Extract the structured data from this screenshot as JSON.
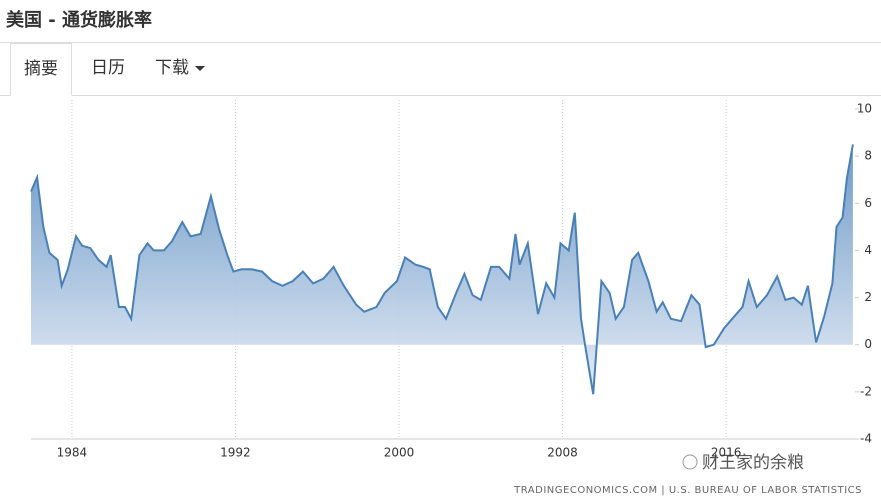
{
  "page": {
    "title": "美国 - 通货膨胀率",
    "tabs": [
      "摘要",
      "日历",
      "下载"
    ],
    "watermark": "财王家的余粮",
    "source": "TRADINGECONOMICS.COM | U.S. BUREAU OF LABOR STATISTICS"
  },
  "chart_data": {
    "type": "area",
    "x": [
      1982.0,
      1982.3,
      1982.6,
      1982.9,
      1983.3,
      1983.5,
      1983.8,
      1984.2,
      1984.5,
      1984.9,
      1985.3,
      1985.7,
      1985.9,
      1986.3,
      1986.6,
      1986.9,
      1987.3,
      1987.7,
      1988.0,
      1988.5,
      1988.9,
      1989.4,
      1989.8,
      1990.3,
      1990.8,
      1991.2,
      1991.6,
      1991.9,
      1992.3,
      1992.8,
      1993.3,
      1993.8,
      1994.3,
      1994.8,
      1995.3,
      1995.8,
      1996.3,
      1996.8,
      1997.3,
      1997.9,
      1998.3,
      1998.9,
      1999.3,
      1999.9,
      2000.3,
      2000.8,
      2001.2,
      2001.5,
      2001.9,
      2002.3,
      2002.8,
      2003.2,
      2003.6,
      2004.0,
      2004.5,
      2004.9,
      2005.4,
      2005.7,
      2005.9,
      2006.3,
      2006.8,
      2007.2,
      2007.6,
      2007.9,
      2008.3,
      2008.6,
      2008.9,
      2009.1,
      2009.5,
      2009.9,
      2010.3,
      2010.6,
      2011.0,
      2011.4,
      2011.7,
      2012.2,
      2012.6,
      2012.9,
      2013.3,
      2013.8,
      2014.3,
      2014.7,
      2015.0,
      2015.4,
      2015.9,
      2016.3,
      2016.8,
      2017.1,
      2017.5,
      2018.0,
      2018.5,
      2018.9,
      2019.3,
      2019.7,
      2020.0,
      2020.4,
      2020.8,
      2021.2,
      2021.4,
      2021.7,
      2021.9,
      2022.2
    ],
    "values": [
      6.5,
      7.1,
      5.0,
      3.9,
      3.6,
      2.5,
      3.2,
      4.6,
      4.2,
      4.1,
      3.6,
      3.3,
      3.8,
      1.6,
      1.6,
      1.1,
      3.8,
      4.3,
      4.0,
      4.0,
      4.4,
      5.2,
      4.6,
      4.7,
      6.3,
      4.9,
      3.8,
      3.1,
      3.2,
      3.2,
      3.1,
      2.7,
      2.5,
      2.7,
      3.1,
      2.6,
      2.8,
      3.3,
      2.5,
      1.7,
      1.4,
      1.6,
      2.2,
      2.7,
      3.7,
      3.4,
      3.3,
      3.2,
      1.6,
      1.1,
      2.2,
      3.0,
      2.1,
      1.9,
      3.3,
      3.3,
      2.8,
      4.7,
      3.4,
      4.3,
      1.3,
      2.6,
      2.0,
      4.3,
      4.0,
      5.6,
      1.1,
      0.0,
      -2.1,
      2.7,
      2.2,
      1.1,
      1.6,
      3.6,
      3.9,
      2.7,
      1.4,
      1.8,
      1.1,
      1.0,
      2.1,
      1.7,
      -0.1,
      0.0,
      0.7,
      1.1,
      1.6,
      2.7,
      1.6,
      2.1,
      2.9,
      1.9,
      2.0,
      1.7,
      2.5,
      0.1,
      1.2,
      2.6,
      5.0,
      5.4,
      7.0,
      8.5
    ],
    "color": "#4a80b8",
    "xlim": [
      1982,
      2022.5
    ],
    "xticks": [
      1984,
      1992,
      2000,
      2008,
      2016
    ],
    "ylim": [
      -4,
      10
    ],
    "yticks": [
      -4,
      -2,
      0,
      2,
      4,
      6,
      8,
      10
    ],
    "grid": true
  }
}
